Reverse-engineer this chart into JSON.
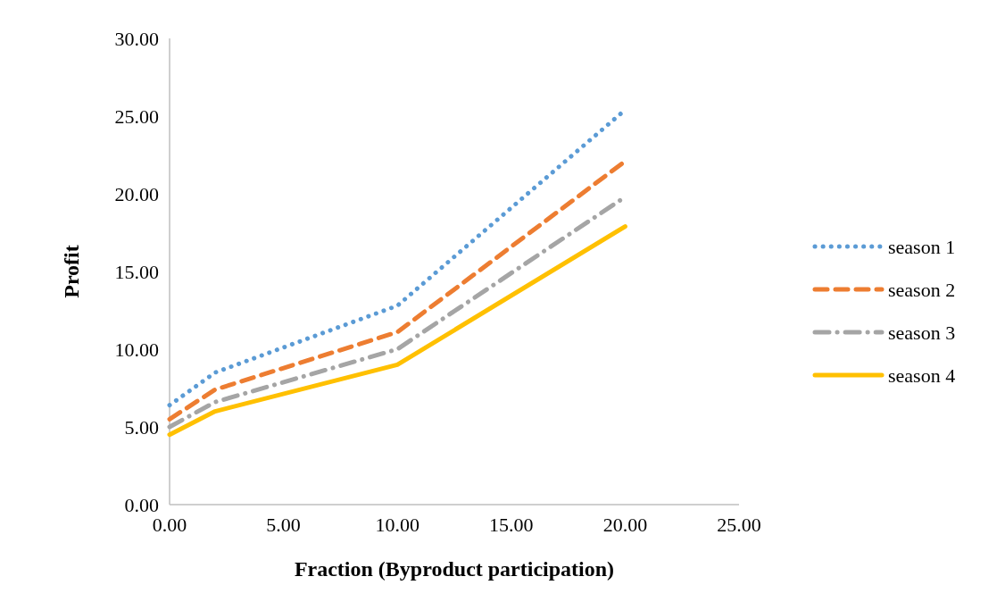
{
  "chart_data": {
    "type": "line",
    "xlabel": "Fraction (Byproduct participation)",
    "ylabel": "Profit",
    "x": [
      0,
      2,
      10,
      20
    ],
    "xlim": [
      0,
      25
    ],
    "xticks": [
      {
        "value": 0,
        "label": "0.00"
      },
      {
        "value": 5,
        "label": "5.00"
      },
      {
        "value": 10,
        "label": "10.00"
      },
      {
        "value": 15,
        "label": "15.00"
      },
      {
        "value": 20,
        "label": "20.00"
      },
      {
        "value": 25,
        "label": "25.00"
      }
    ],
    "ylim": [
      0,
      30
    ],
    "yticks": [
      {
        "value": 0,
        "label": "0.00"
      },
      {
        "value": 5,
        "label": "5.00"
      },
      {
        "value": 10,
        "label": "10.00"
      },
      {
        "value": 15,
        "label": "15.00"
      },
      {
        "value": 20,
        "label": "20.00"
      },
      {
        "value": 25,
        "label": "25.00"
      },
      {
        "value": 30,
        "label": "30.00"
      }
    ],
    "grid": false,
    "legend": "right",
    "marker": "none",
    "series": [
      {
        "name": "season 1",
        "color": "#5b9bd5",
        "line_style": "dotted",
        "values": [
          6.4,
          8.5,
          12.8,
          25.4
        ]
      },
      {
        "name": "season 2",
        "color": "#ed7d31",
        "line_style": "dashed",
        "values": [
          5.5,
          7.4,
          11.1,
          22.1
        ]
      },
      {
        "name": "season 3",
        "color": "#a5a5a5",
        "line_style": "dashdot",
        "values": [
          5.0,
          6.6,
          10.0,
          19.8
        ]
      },
      {
        "name": "season 4",
        "color": "#ffc000",
        "line_style": "solid",
        "values": [
          4.5,
          6.0,
          9.0,
          17.9
        ]
      }
    ]
  }
}
